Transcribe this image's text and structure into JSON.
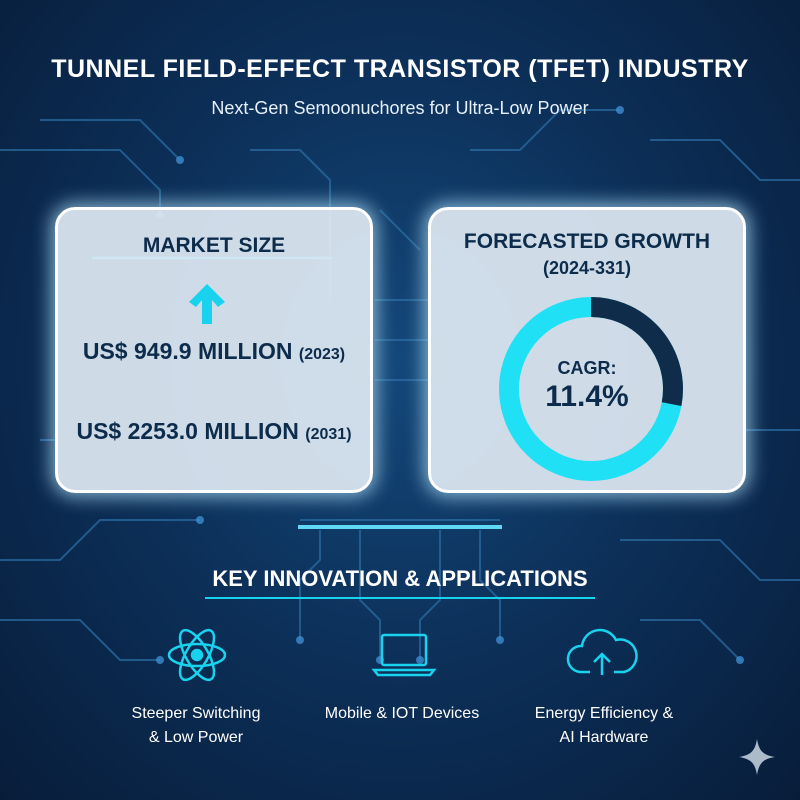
{
  "header": {
    "title": "TUNNEL FIELD-EFFECT TRANSISTOR (TFET) INDUSTRY",
    "subtitle": "Next-Gen Semoonuchores for Ultra-Low Power"
  },
  "market_size": {
    "title": "MARKET SIZE",
    "rows": [
      {
        "value": "US$ 949.9 MILLION",
        "year": "(2023)"
      },
      {
        "value": "US$ 2253.0 MILLION",
        "year": "(2031)"
      }
    ]
  },
  "growth": {
    "title": "FORECASTED GROWTH",
    "period": "(2024-331)",
    "metric": "CAGR:",
    "value": "11.4%"
  },
  "applications": {
    "title": "KEY INNOVATION & APPLICATIONS",
    "items": [
      {
        "lines": [
          "Steeper Switching",
          "& Low Power"
        ]
      },
      {
        "lines": [
          "Mobile & IOT Devices"
        ]
      },
      {
        "lines": [
          "Energy Efficiency &",
          "AI Hardware"
        ]
      }
    ]
  }
}
